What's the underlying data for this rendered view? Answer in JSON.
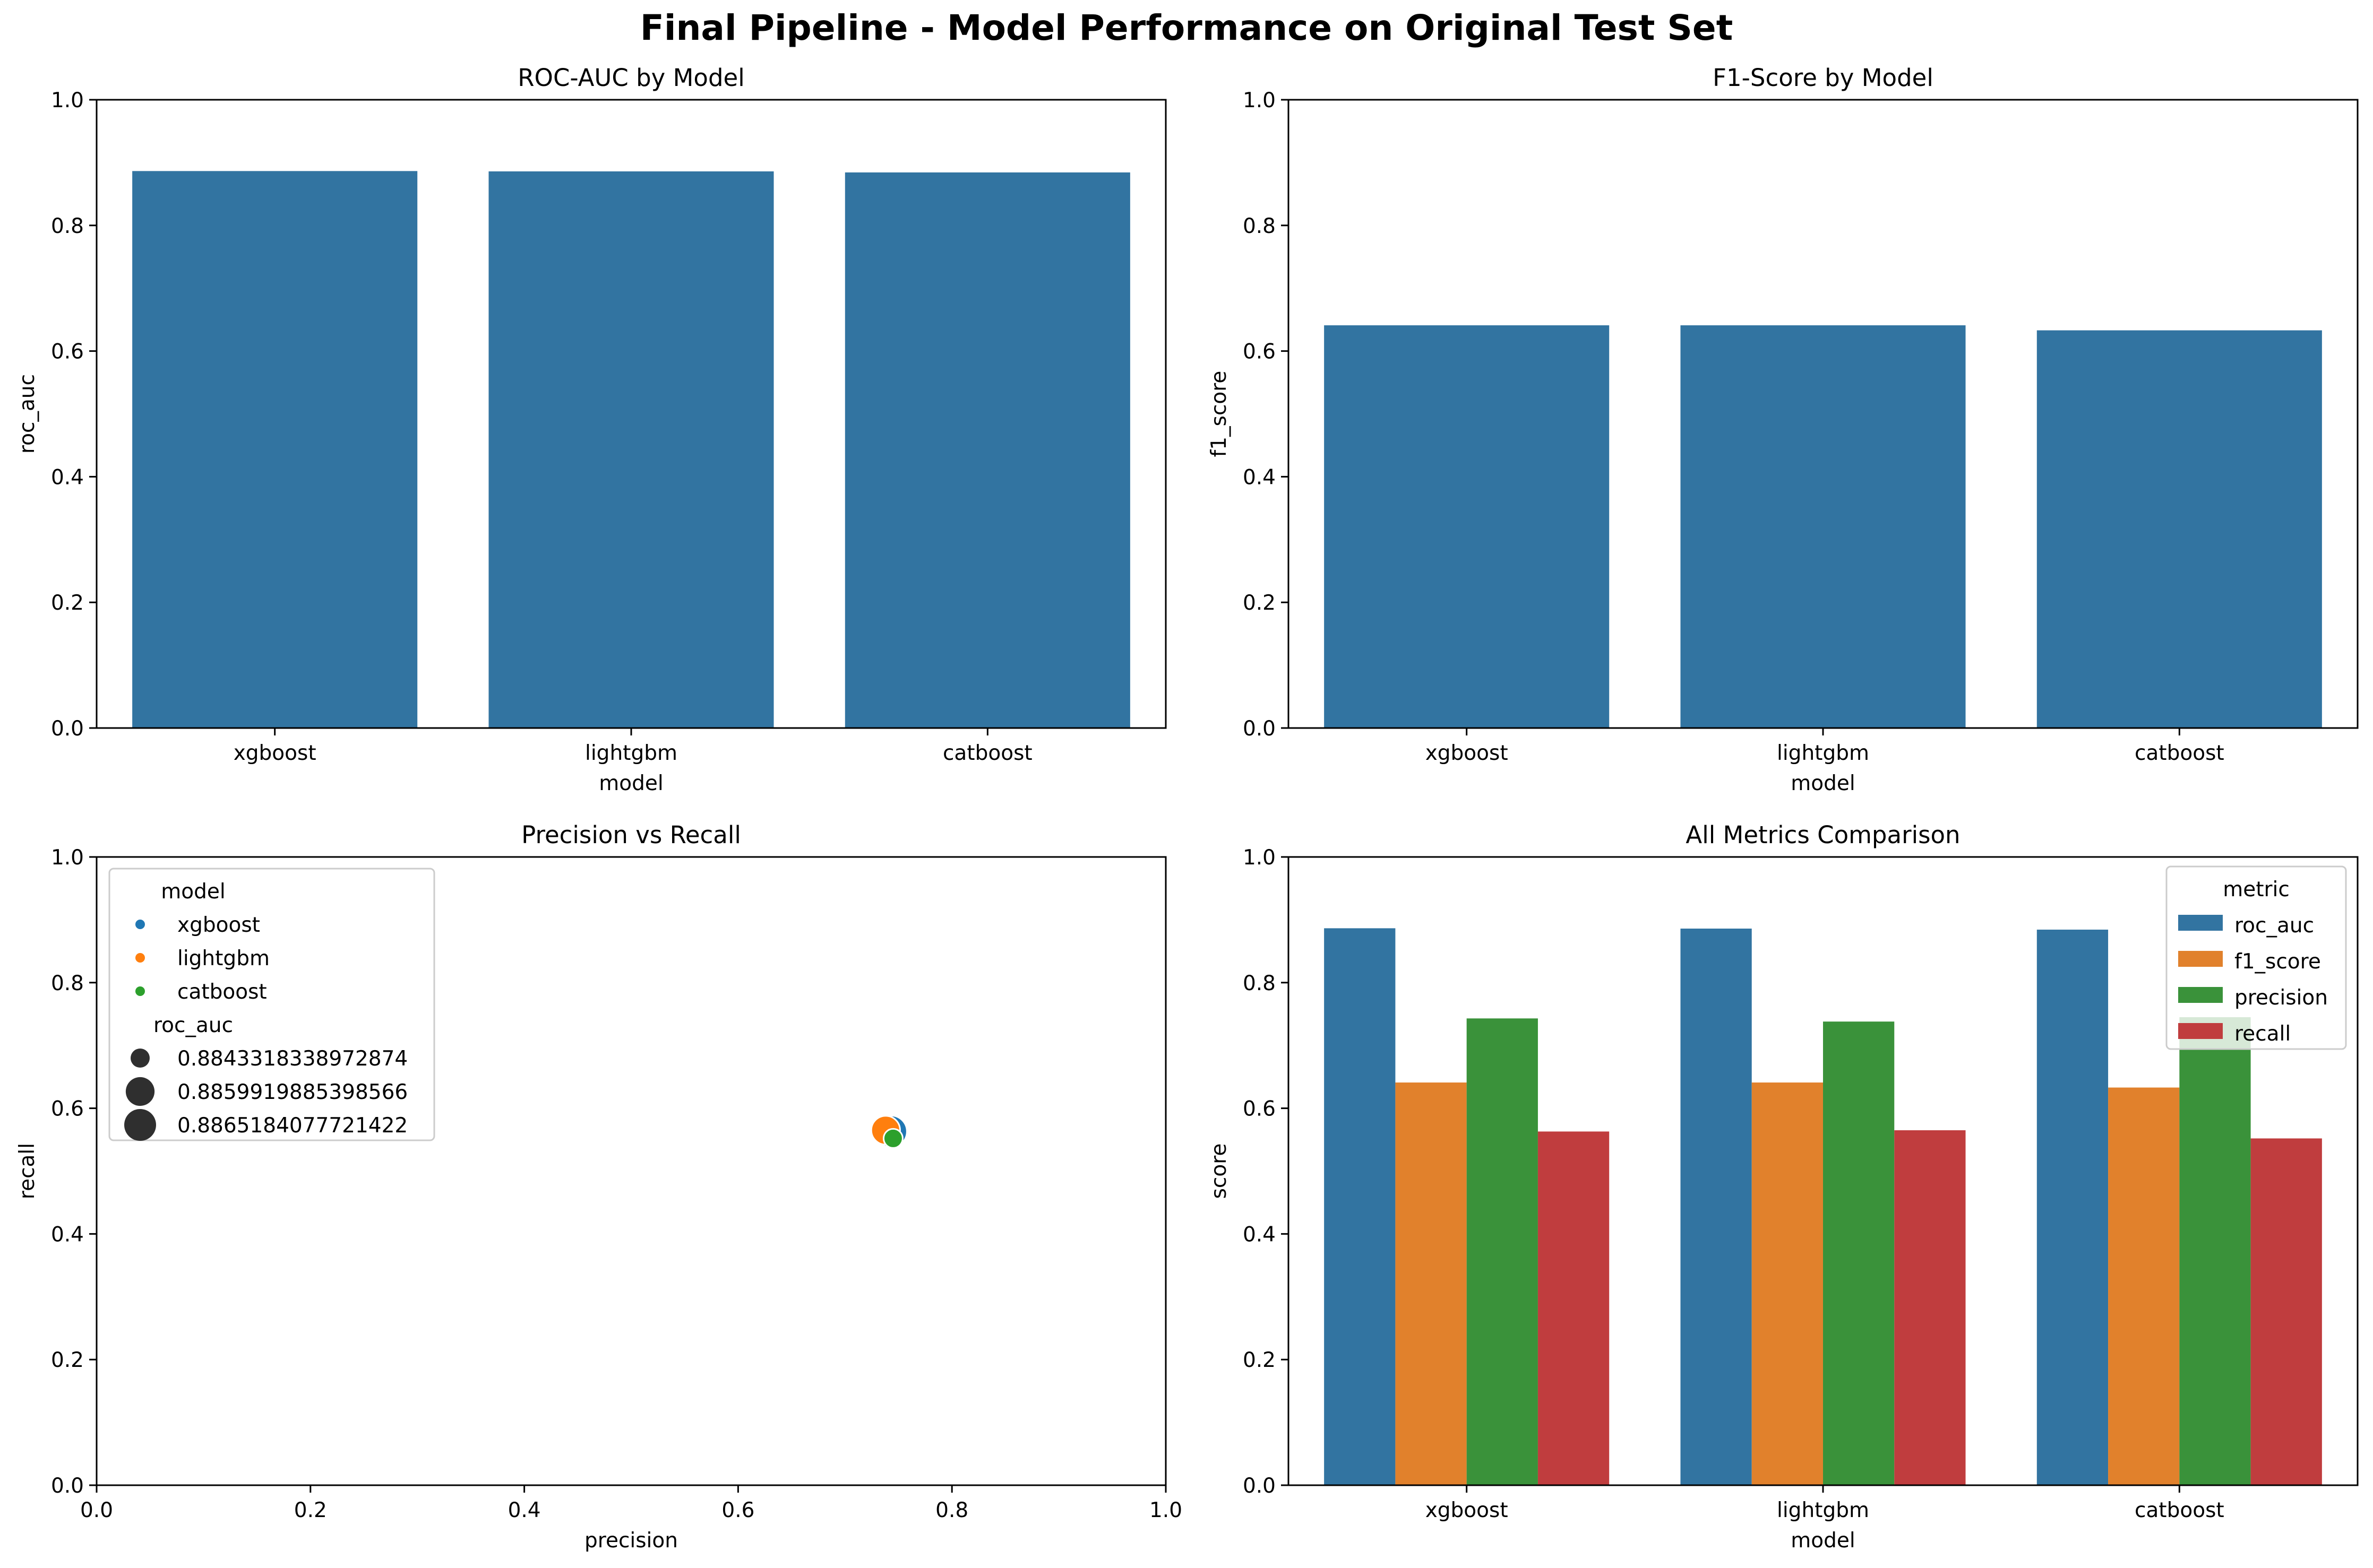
{
  "figure_title": "Final Pipeline - Model Performance on Original Test Set",
  "colors": {
    "roc_auc": "#3274a1",
    "f1_score": "#e1812c",
    "precision": "#3a923a",
    "recall": "#c03d3e",
    "xgboost": "#1f77b4",
    "lightgbm": "#ff7f0e",
    "catboost": "#2ca02c",
    "size_legend": "#2f2f2f"
  },
  "chart_data": [
    {
      "type": "bar",
      "title": "ROC-AUC by Model",
      "xlabel": "model",
      "ylabel": "roc_auc",
      "categories": [
        "xgboost",
        "lightgbm",
        "catboost"
      ],
      "values": [
        0.8865184077721422,
        0.8859919885398566,
        0.8843318338972874
      ],
      "ylim": [
        0,
        1
      ],
      "yticks": [
        "0.0",
        "0.2",
        "0.4",
        "0.6",
        "0.8",
        "1.0"
      ],
      "grid": false
    },
    {
      "type": "bar",
      "title": "F1-Score by Model",
      "xlabel": "model",
      "ylabel": "f1_score",
      "categories": [
        "xgboost",
        "lightgbm",
        "catboost"
      ],
      "values": [
        0.641,
        0.641,
        0.633
      ],
      "ylim": [
        0,
        1
      ],
      "yticks": [
        "0.0",
        "0.2",
        "0.4",
        "0.6",
        "0.8",
        "1.0"
      ],
      "grid": false
    },
    {
      "type": "scatter",
      "title": "Precision vs Recall",
      "xlabel": "precision",
      "ylabel": "recall",
      "xlim": [
        0,
        1
      ],
      "ylim": [
        0,
        1
      ],
      "xticks": [
        "0.0",
        "0.2",
        "0.4",
        "0.6",
        "0.8",
        "1.0"
      ],
      "yticks": [
        "0.0",
        "0.2",
        "0.4",
        "0.6",
        "0.8",
        "1.0"
      ],
      "points": [
        {
          "model": "xgboost",
          "precision": 0.743,
          "recall": 0.563,
          "roc_auc": 0.8865184077721422
        },
        {
          "model": "lightgbm",
          "precision": 0.738,
          "recall": 0.565,
          "roc_auc": 0.8859919885398566
        },
        {
          "model": "catboost",
          "precision": 0.745,
          "recall": 0.552,
          "roc_auc": 0.8843318338972874
        }
      ],
      "legend": {
        "position": "upper left",
        "hue_title": "model",
        "hue_entries": [
          "xgboost",
          "lightgbm",
          "catboost"
        ],
        "size_title": "roc_auc",
        "size_entries": [
          "0.8843318338972874",
          "0.8859919885398566",
          "0.8865184077721422"
        ]
      },
      "grid": false
    },
    {
      "type": "bar",
      "title": "All Metrics Comparison",
      "xlabel": "model",
      "ylabel": "score",
      "categories": [
        "xgboost",
        "lightgbm",
        "catboost"
      ],
      "series": [
        {
          "name": "roc_auc",
          "values": [
            0.8865184077721422,
            0.8859919885398566,
            0.8843318338972874
          ]
        },
        {
          "name": "f1_score",
          "values": [
            0.641,
            0.641,
            0.633
          ]
        },
        {
          "name": "precision",
          "values": [
            0.743,
            0.738,
            0.745
          ]
        },
        {
          "name": "recall",
          "values": [
            0.563,
            0.565,
            0.552
          ]
        }
      ],
      "ylim": [
        0,
        1
      ],
      "yticks": [
        "0.0",
        "0.2",
        "0.4",
        "0.6",
        "0.8",
        "1.0"
      ],
      "legend": {
        "title": "metric",
        "position": "upper right"
      },
      "grid": false
    }
  ]
}
